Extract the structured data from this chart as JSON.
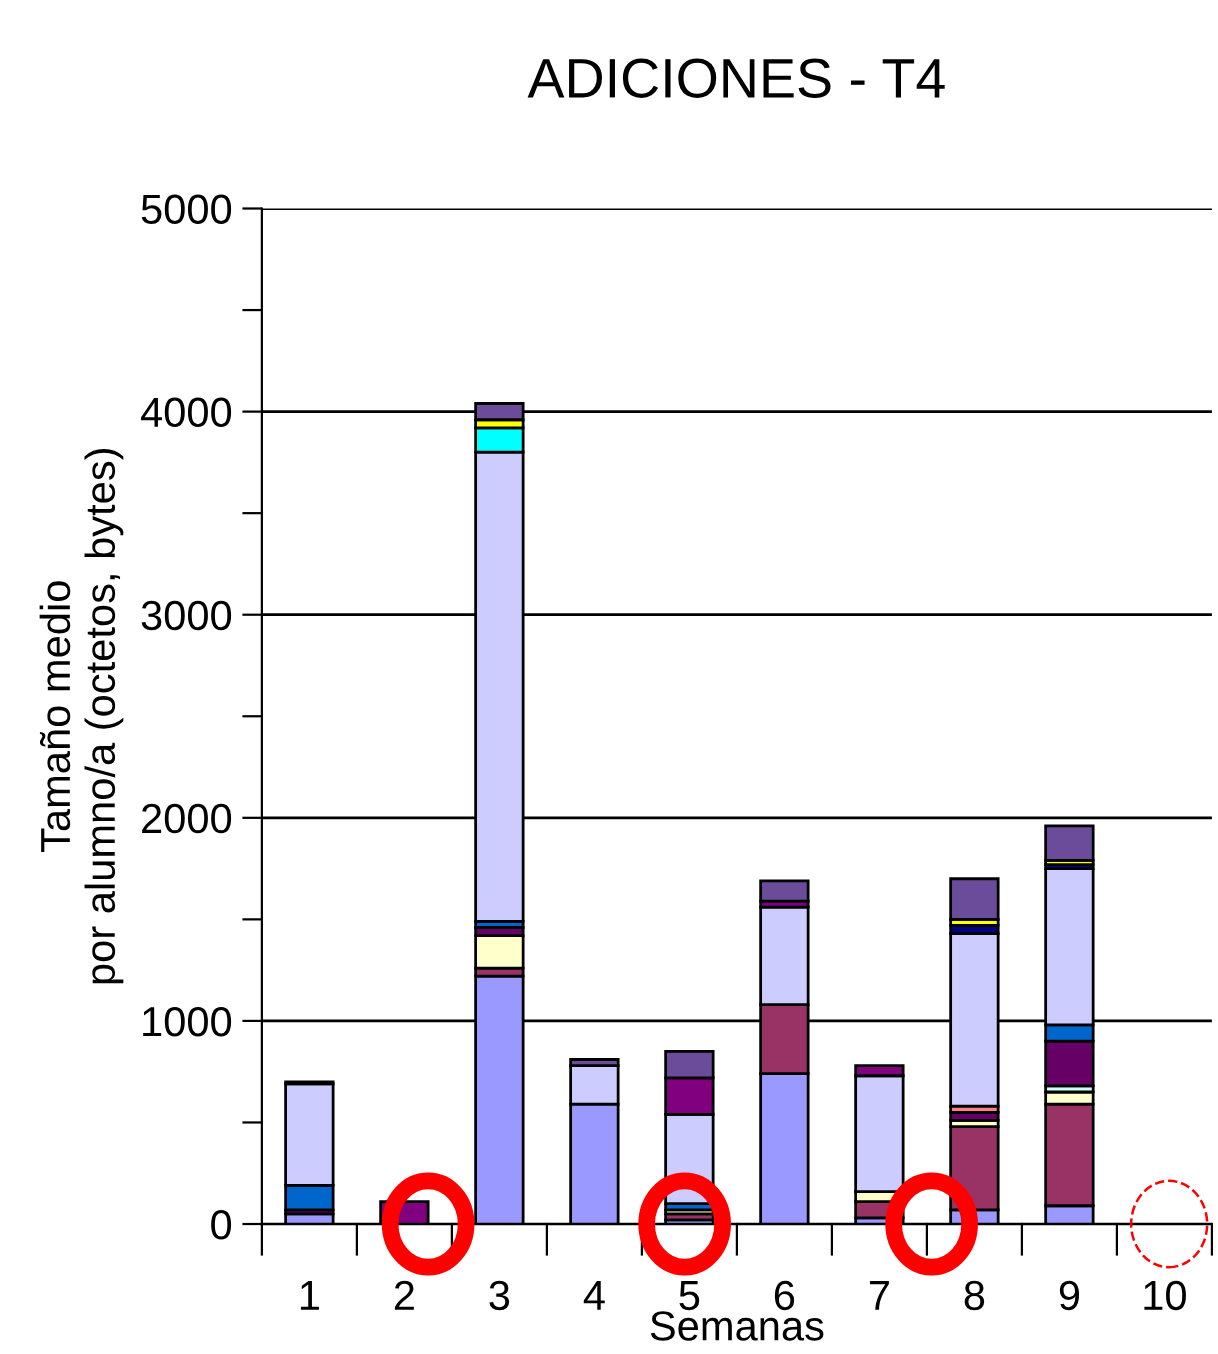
{
  "chart_data": {
    "type": "bar",
    "title": "ADICIONES - T4",
    "xlabel": "Semanas",
    "ylabel": "Tamaño medio\npor alumno/a (octetos, bytes)",
    "categories": [
      "1",
      "2",
      "3",
      "4",
      "5",
      "6",
      "7",
      "8",
      "9",
      "10"
    ],
    "stacked": true,
    "grid": "y",
    "legend": false,
    "ylim": [
      0,
      5000
    ],
    "yticks": [
      0,
      {
        "value": 500,
        "label": null
      },
      1000,
      {
        "value": 1500,
        "label": null
      },
      2000,
      {
        "value": 2500,
        "label": null
      },
      3000,
      {
        "value": 3500,
        "label": null
      },
      4000,
      {
        "value": 4500,
        "label": null
      },
      5000
    ],
    "series": [
      {
        "color": "#9999ff",
        "values": [
          50,
          null,
          1220,
          590,
          20,
          740,
          30,
          70,
          90,
          null
        ]
      },
      {
        "color": "#993366",
        "values": [
          null,
          null,
          40,
          null,
          30,
          340,
          80,
          410,
          500,
          null
        ]
      },
      {
        "color": "#ffffcc",
        "values": [
          null,
          null,
          160,
          null,
          20,
          null,
          50,
          30,
          60,
          null
        ]
      },
      {
        "color": "#ccffff",
        "values": [
          null,
          null,
          null,
          null,
          null,
          null,
          null,
          null,
          30,
          null
        ]
      },
      {
        "color": "#660066",
        "values": [
          20,
          null,
          40,
          null,
          null,
          null,
          null,
          40,
          220,
          null
        ]
      },
      {
        "color": "#ff8080",
        "values": [
          null,
          null,
          null,
          null,
          null,
          null,
          null,
          30,
          null,
          null
        ]
      },
      {
        "color": "#0066cc",
        "values": [
          120,
          null,
          30,
          null,
          30,
          null,
          null,
          null,
          80,
          null
        ]
      },
      {
        "color": "#ccccff",
        "values": [
          500,
          null,
          2310,
          190,
          440,
          480,
          570,
          850,
          770,
          null
        ]
      },
      {
        "color": "#000080",
        "values": [
          10,
          null,
          null,
          null,
          null,
          null,
          null,
          40,
          20,
          null
        ]
      },
      {
        "color": "#800080",
        "values": [
          null,
          110,
          null,
          null,
          180,
          30,
          50,
          null,
          null,
          null
        ]
      },
      {
        "color": "#00ffff",
        "values": [
          null,
          null,
          120,
          null,
          null,
          null,
          null,
          null,
          null,
          null
        ]
      },
      {
        "color": "#ffff00",
        "values": [
          null,
          null,
          40,
          null,
          null,
          null,
          null,
          30,
          20,
          null
        ]
      },
      {
        "color": "#6b4c9a",
        "values": [
          null,
          null,
          80,
          30,
          130,
          100,
          null,
          200,
          170,
          null
        ]
      }
    ]
  }
}
